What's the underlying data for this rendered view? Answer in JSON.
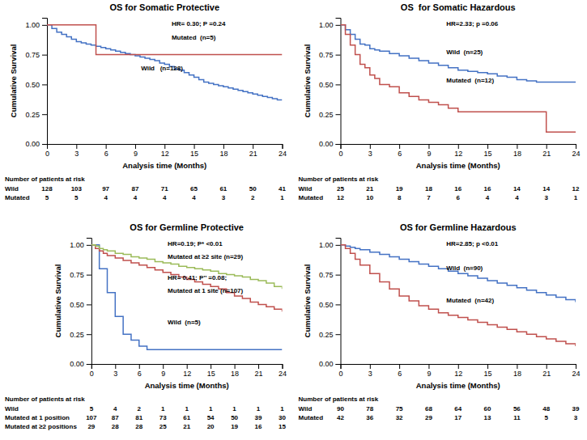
{
  "chart_data": [
    {
      "type": "step",
      "title": "OS for Somatic Protective",
      "x_label": "Analysis time (Months)",
      "y_label": "Cumulative Survival",
      "xlim": [
        0,
        24
      ],
      "ylim": [
        0,
        1.06
      ],
      "xticks": [
        0,
        3,
        6,
        9,
        12,
        15,
        18,
        21,
        24
      ],
      "yticks": [
        {
          "value": 0.0,
          "label": "0.00"
        },
        {
          "value": 0.25,
          "label": "0.25"
        },
        {
          "value": 0.5,
          "label": "0.50"
        },
        {
          "value": 0.75,
          "label": "0.75"
        },
        {
          "value": 1.0,
          "label": "1.00"
        }
      ],
      "grid": false,
      "series": [
        {
          "color": "#4472C4",
          "x": [
            0,
            0.5,
            1,
            1.5,
            2,
            2.5,
            3,
            3.5,
            4,
            4.5,
            5,
            5.5,
            6,
            6.5,
            7,
            7.5,
            8,
            8.5,
            9,
            9.5,
            10,
            10.5,
            11,
            11.5,
            12,
            12.5,
            13,
            13.5,
            14,
            14.5,
            15,
            15.5,
            16,
            16.5,
            17,
            17.5,
            18,
            18.5,
            19,
            19.5,
            20,
            20.5,
            21,
            21.5,
            22,
            22.5,
            23,
            23.5,
            24
          ],
          "values": [
            1.0,
            0.97,
            0.94,
            0.92,
            0.9,
            0.88,
            0.86,
            0.85,
            0.84,
            0.83,
            0.82,
            0.81,
            0.8,
            0.79,
            0.78,
            0.77,
            0.76,
            0.75,
            0.74,
            0.73,
            0.72,
            0.71,
            0.7,
            0.68,
            0.67,
            0.65,
            0.63,
            0.62,
            0.6,
            0.58,
            0.56,
            0.54,
            0.52,
            0.51,
            0.5,
            0.49,
            0.48,
            0.47,
            0.46,
            0.45,
            0.44,
            0.43,
            0.42,
            0.41,
            0.4,
            0.39,
            0.38,
            0.37,
            0.37
          ]
        },
        {
          "color": "#C0504D",
          "x": [
            0,
            5,
            5,
            24
          ],
          "values": [
            1.0,
            1.0,
            0.75,
            0.75
          ]
        }
      ],
      "annotations": [
        "HR= 0.30; P =0.24",
        "Mutated  (n=5)",
        "Wild   (n=128)"
      ],
      "risk_table": {
        "title": "Number of patients at risk",
        "rows": [
          {
            "label": "Wild",
            "values": [
              128,
              103,
              97,
              87,
              71,
              65,
              61,
              50,
              41
            ]
          },
          {
            "label": "Mutated",
            "values": [
              5,
              5,
              4,
              4,
              4,
              4,
              3,
              2,
              1
            ]
          }
        ]
      }
    },
    {
      "type": "step",
      "title": "OS  for Somatic Hazardous",
      "x_label": "Analysis time (Months)",
      "y_label": "Cumulative Survival",
      "xlim": [
        0,
        24
      ],
      "ylim": [
        0,
        1.06
      ],
      "xticks": [
        0,
        3,
        6,
        9,
        12,
        15,
        18,
        21,
        24
      ],
      "yticks": [
        {
          "value": 0.0,
          "label": "0.00"
        },
        {
          "value": 0.25,
          "label": "0.25"
        },
        {
          "value": 0.5,
          "label": "0.50"
        },
        {
          "value": 0.75,
          "label": "0.75"
        },
        {
          "value": 1.0,
          "label": "1.00"
        }
      ],
      "grid": false,
      "series": [
        {
          "color": "#4472C4",
          "x": [
            0,
            0.5,
            1,
            1.5,
            2,
            2.5,
            3,
            3.5,
            4,
            5,
            6,
            7,
            8,
            9,
            10,
            11,
            12,
            13,
            14,
            15,
            16,
            17,
            18,
            19,
            20,
            21,
            22,
            23,
            24
          ],
          "values": [
            1.0,
            0.96,
            0.92,
            0.88,
            0.84,
            0.83,
            0.8,
            0.79,
            0.78,
            0.76,
            0.74,
            0.72,
            0.7,
            0.68,
            0.66,
            0.64,
            0.62,
            0.61,
            0.6,
            0.59,
            0.57,
            0.56,
            0.54,
            0.53,
            0.52,
            0.52,
            0.52,
            0.52,
            0.52
          ]
        },
        {
          "color": "#C0504D",
          "x": [
            0,
            0.5,
            1,
            1.5,
            2,
            2.5,
            3,
            3.5,
            4,
            5,
            6,
            7,
            8,
            9,
            10,
            11,
            12,
            13,
            14,
            15,
            16,
            17,
            18,
            19,
            20,
            21,
            22,
            23,
            24
          ],
          "values": [
            1.0,
            0.92,
            0.83,
            0.75,
            0.67,
            0.64,
            0.58,
            0.55,
            0.5,
            0.48,
            0.43,
            0.4,
            0.37,
            0.35,
            0.33,
            0.3,
            0.27,
            0.27,
            0.27,
            0.27,
            0.27,
            0.27,
            0.27,
            0.27,
            0.27,
            0.1,
            0.1,
            0.1,
            0.1
          ]
        }
      ],
      "annotations": [
        "HR=2.33; p =0.06",
        "Wild  (n=25)",
        "Mutated  (n=12)"
      ],
      "risk_table": {
        "title": "Number of patients at risk",
        "rows": [
          {
            "label": "Wild",
            "values": [
              25,
              21,
              19,
              18,
              16,
              16,
              14,
              14,
              12
            ]
          },
          {
            "label": "Mutated",
            "values": [
              12,
              10,
              8,
              7,
              6,
              4,
              4,
              3,
              1
            ]
          }
        ]
      }
    },
    {
      "type": "step",
      "title": "OS for Germline Protective",
      "x_label": "Analysis time (Months)",
      "y_label": "Cumulative Survival",
      "xlim": [
        0,
        24
      ],
      "ylim": [
        0,
        1.06
      ],
      "xticks": [
        0,
        3,
        6,
        9,
        12,
        15,
        18,
        21,
        24
      ],
      "yticks": [
        {
          "value": 0.0,
          "label": "0.00"
        },
        {
          "value": 0.25,
          "label": "0.25"
        },
        {
          "value": 0.5,
          "label": "0.50"
        },
        {
          "value": 0.75,
          "label": "0.75"
        },
        {
          "value": 1.0,
          "label": "1.00"
        }
      ],
      "grid": false,
      "series": [
        {
          "color": "#4472C4",
          "x": [
            0,
            1,
            2,
            3,
            4,
            5,
            6,
            7,
            8,
            24
          ],
          "values": [
            1.0,
            0.8,
            0.6,
            0.4,
            0.25,
            0.2,
            0.15,
            0.12,
            0.12,
            0.12
          ]
        },
        {
          "color": "#C0504D",
          "x": [
            0,
            0.5,
            1,
            1.5,
            2,
            3,
            4,
            5,
            6,
            7,
            8,
            9,
            10,
            11,
            12,
            13,
            14,
            15,
            16,
            17,
            18,
            19,
            20,
            21,
            22,
            23,
            24
          ],
          "values": [
            1.0,
            0.97,
            0.95,
            0.93,
            0.91,
            0.89,
            0.87,
            0.85,
            0.83,
            0.81,
            0.79,
            0.77,
            0.75,
            0.73,
            0.71,
            0.69,
            0.67,
            0.65,
            0.63,
            0.6,
            0.57,
            0.55,
            0.52,
            0.5,
            0.48,
            0.46,
            0.44
          ]
        },
        {
          "color": "#9BBB59",
          "x": [
            0,
            0.5,
            1,
            1.5,
            2,
            3,
            4,
            5,
            6,
            7,
            8,
            9,
            10,
            11,
            12,
            13,
            14,
            15,
            16,
            17,
            18,
            19,
            20,
            21,
            22,
            23,
            24
          ],
          "values": [
            1.0,
            0.99,
            0.97,
            0.96,
            0.95,
            0.93,
            0.92,
            0.9,
            0.89,
            0.88,
            0.86,
            0.85,
            0.84,
            0.82,
            0.81,
            0.8,
            0.79,
            0.78,
            0.76,
            0.75,
            0.74,
            0.73,
            0.71,
            0.7,
            0.68,
            0.65,
            0.63
          ]
        }
      ],
      "annotations": [
        "HR=0.19; P* <0.01",
        "Mutated at ≥2 site (n=29)",
        "HR= 0.41; P’’ =0.08;",
        "Mutated at 1 site (n=107)",
        "Wild  (n=5)"
      ],
      "risk_table": {
        "title": "Number of patients at risk",
        "rows": [
          {
            "label": "Wild",
            "values": [
              5,
              4,
              2,
              1,
              1,
              1,
              1,
              1,
              1
            ]
          },
          {
            "label": "Mutated at 1 position",
            "values": [
              107,
              87,
              81,
              73,
              61,
              54,
              50,
              39,
              30
            ]
          },
          {
            "label": "Mutated at ≥2 positions",
            "values": [
              29,
              28,
              28,
              25,
              21,
              20,
              19,
              16,
              15
            ]
          }
        ]
      }
    },
    {
      "type": "step",
      "title": "OS for Germline Hazardous",
      "x_label": "Analysis time (Months)",
      "y_label": "Cumulative Survival",
      "xlim": [
        0,
        24
      ],
      "ylim": [
        0,
        1.06
      ],
      "xticks": [
        0,
        3,
        6,
        9,
        12,
        15,
        18,
        21,
        24
      ],
      "yticks": [
        {
          "value": 0.0,
          "label": "0.00"
        },
        {
          "value": 0.25,
          "label": "0.25"
        },
        {
          "value": 0.5,
          "label": "0.50"
        },
        {
          "value": 0.75,
          "label": "0.75"
        },
        {
          "value": 1.0,
          "label": "1.00"
        }
      ],
      "grid": false,
      "series": [
        {
          "color": "#4472C4",
          "x": [
            0,
            0.5,
            1,
            1.5,
            2,
            3,
            4,
            5,
            6,
            7,
            8,
            9,
            10,
            11,
            12,
            13,
            14,
            15,
            16,
            17,
            18,
            19,
            20,
            21,
            22,
            23,
            24
          ],
          "values": [
            1.0,
            0.99,
            0.98,
            0.97,
            0.96,
            0.94,
            0.92,
            0.9,
            0.88,
            0.86,
            0.84,
            0.82,
            0.8,
            0.78,
            0.76,
            0.74,
            0.72,
            0.7,
            0.68,
            0.66,
            0.64,
            0.62,
            0.6,
            0.58,
            0.56,
            0.54,
            0.52
          ]
        },
        {
          "color": "#C0504D",
          "x": [
            0,
            0.5,
            1,
            1.5,
            2,
            3,
            4,
            5,
            6,
            7,
            8,
            9,
            10,
            11,
            12,
            13,
            14,
            15,
            16,
            17,
            18,
            19,
            20,
            21,
            22,
            23,
            24
          ],
          "values": [
            1.0,
            0.97,
            0.93,
            0.88,
            0.83,
            0.76,
            0.69,
            0.63,
            0.57,
            0.53,
            0.49,
            0.46,
            0.43,
            0.41,
            0.39,
            0.37,
            0.35,
            0.33,
            0.31,
            0.29,
            0.27,
            0.25,
            0.23,
            0.21,
            0.19,
            0.17,
            0.15
          ]
        }
      ],
      "annotations": [
        "HR=2.85; p <0.01",
        "Wild  (n=90)",
        "Mutated  (n=42)"
      ],
      "risk_table": {
        "title": "Number of patients at risk",
        "rows": [
          {
            "label": "Wild",
            "values": [
              90,
              78,
              75,
              68,
              64,
              60,
              56,
              48,
              39
            ]
          },
          {
            "label": "Mutated",
            "values": [
              42,
              36,
              32,
              29,
              17,
              13,
              11,
              5,
              3
            ]
          }
        ]
      }
    }
  ]
}
